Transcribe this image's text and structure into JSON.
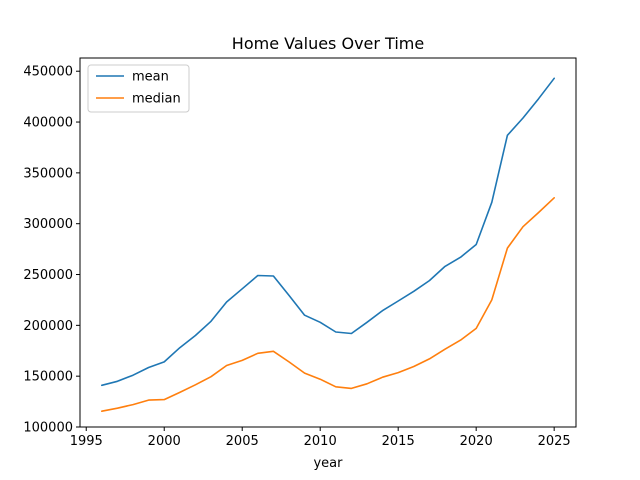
{
  "chart_data": {
    "type": "line",
    "title": "Home Values Over Time",
    "xlabel": "year",
    "ylabel": "",
    "xlim": [
      1994.6,
      2026.4
    ],
    "ylim": [
      100000,
      463000
    ],
    "xticks": [
      1995,
      2000,
      2005,
      2010,
      2015,
      2020,
      2025
    ],
    "yticks": [
      100000,
      150000,
      200000,
      250000,
      300000,
      350000,
      400000,
      450000
    ],
    "xtick_labels": [
      "1995",
      "2000",
      "2005",
      "2010",
      "2015",
      "2020",
      "2025"
    ],
    "ytick_labels": [
      "100000",
      "150000",
      "200000",
      "250000",
      "300000",
      "350000",
      "400000",
      "450000"
    ],
    "grid": false,
    "legend_position": "top-left",
    "x": [
      1996,
      1997,
      1998,
      1999,
      2000,
      2001,
      2002,
      2003,
      2004,
      2005,
      2006,
      2007,
      2008,
      2009,
      2010,
      2011,
      2012,
      2013,
      2014,
      2015,
      2016,
      2017,
      2018,
      2019,
      2020,
      2021,
      2022,
      2023,
      2024,
      2025
    ],
    "series": [
      {
        "name": "mean",
        "color": "#1f77b4",
        "values": [
          141000,
          145000,
          151000,
          158500,
          164000,
          178000,
          190000,
          204000,
          223000,
          236000,
          249000,
          248500,
          229500,
          210000,
          203000,
          193500,
          192000,
          203000,
          214500,
          224000,
          233500,
          244000,
          258000,
          267000,
          279500,
          321000,
          387000,
          404000,
          423000,
          443000
        ]
      },
      {
        "name": "median",
        "color": "#ff7f0e",
        "values": [
          115500,
          118500,
          122000,
          126500,
          127000,
          134000,
          141500,
          149500,
          160500,
          165500,
          172500,
          174500,
          164000,
          153000,
          147000,
          139500,
          138000,
          142500,
          149000,
          153500,
          159500,
          167000,
          176500,
          185500,
          197000,
          225000,
          276000,
          297000,
          311000,
          325500
        ]
      }
    ]
  }
}
